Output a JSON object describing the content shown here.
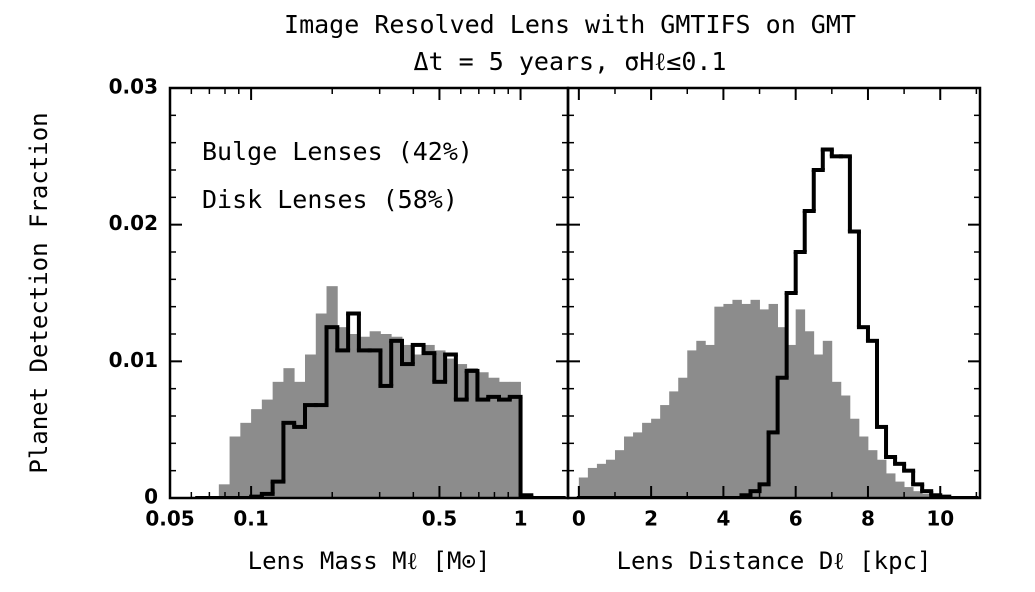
{
  "title": "Image Resolved Lens with GMTIFS on GMT",
  "subtitle": "Δt = 5 years, σHℓ≤0.1",
  "y_label": "Planet Detection Fraction",
  "chart_data": [
    {
      "type": "histogram",
      "x_label": "Lens Mass Mℓ [M⊙]",
      "xscale": "log",
      "xlim": [
        0.05,
        1.5
      ],
      "ylim": [
        0,
        0.03
      ],
      "xticks": [
        0.05,
        0.1,
        0.5,
        1
      ],
      "xminor": [
        0.06,
        0.07,
        0.08,
        0.09,
        0.2,
        0.3,
        0.4,
        0.6,
        0.7,
        0.8,
        0.9
      ],
      "yticks": [
        0,
        0.01,
        0.02,
        0.03
      ],
      "yminor": [
        0.002,
        0.004,
        0.006,
        0.008,
        0.012,
        0.014,
        0.016,
        0.018,
        0.022,
        0.024,
        0.026,
        0.028
      ],
      "bins": [
        0.0631,
        0.0692,
        0.0759,
        0.0832,
        0.0912,
        0.1,
        0.1096,
        0.1202,
        0.1318,
        0.1445,
        0.1585,
        0.1738,
        0.1905,
        0.2089,
        0.2291,
        0.2512,
        0.2754,
        0.302,
        0.3311,
        0.3631,
        0.3981,
        0.4365,
        0.4786,
        0.5248,
        0.5754,
        0.631,
        0.6918,
        0.7586,
        0.8318,
        0.912,
        1.0,
        1.0965,
        1.2023,
        1.3183,
        1.4454
      ],
      "series": [
        {
          "name": "Bulge Lenses (42%)",
          "color": "#000000",
          "style": "step",
          "values": [
            0,
            0,
            0,
            0,
            0,
            0.0001,
            0.0003,
            0.0012,
            0.0055,
            0.0052,
            0.0068,
            0.0068,
            0.0125,
            0.0108,
            0.0135,
            0.0108,
            0.0108,
            0.0082,
            0.0115,
            0.0098,
            0.0112,
            0.0106,
            0.0085,
            0.0105,
            0.0072,
            0.0093,
            0.0072,
            0.0074,
            0.0072,
            0.0074,
            0.0002,
            0,
            0,
            0
          ]
        },
        {
          "name": "Disk Lenses (58%)",
          "color": "#8c8c8c",
          "style": "filled",
          "values": [
            0,
            0,
            0.001,
            0.0045,
            0.0055,
            0.0065,
            0.0072,
            0.0085,
            0.0095,
            0.0085,
            0.0105,
            0.0135,
            0.0155,
            0.0125,
            0.012,
            0.0118,
            0.0122,
            0.012,
            0.0118,
            0.0112,
            0.0105,
            0.0112,
            0.0108,
            0.0102,
            0.0098,
            0.0095,
            0.0092,
            0.0088,
            0.0085,
            0.0085,
            0,
            0,
            0,
            0
          ]
        }
      ]
    },
    {
      "type": "histogram",
      "x_label": "Lens Distance Dℓ [kpc]",
      "xlim": [
        -0.3,
        11.1
      ],
      "ylim": [
        0,
        0.03
      ],
      "xticks": [
        0,
        2,
        4,
        6,
        8,
        10
      ],
      "xminor": [
        1,
        3,
        5,
        7,
        9,
        11
      ],
      "yticks": [
        0,
        0.01,
        0.02,
        0.03
      ],
      "yminor": [
        0.002,
        0.004,
        0.006,
        0.008,
        0.012,
        0.014,
        0.016,
        0.018,
        0.022,
        0.024,
        0.026,
        0.028
      ],
      "bins": [
        0,
        0.25,
        0.5,
        0.75,
        1,
        1.25,
        1.5,
        1.75,
        2,
        2.25,
        2.5,
        2.75,
        3,
        3.25,
        3.5,
        3.75,
        4,
        4.25,
        4.5,
        4.75,
        5,
        5.25,
        5.5,
        5.75,
        6,
        6.25,
        6.5,
        6.75,
        7,
        7.25,
        7.5,
        7.75,
        8,
        8.25,
        8.5,
        8.75,
        9,
        9.25,
        9.5,
        9.75,
        10,
        10.25,
        10.5,
        10.75,
        11
      ],
      "series": [
        {
          "color": "#000000",
          "style": "step",
          "values": [
            0,
            0,
            0,
            0,
            0,
            0,
            0,
            0,
            0,
            0,
            0,
            0,
            0,
            0,
            0,
            0,
            0,
            0,
            0.0002,
            0.0005,
            0.001,
            0.0048,
            0.0088,
            0.015,
            0.018,
            0.021,
            0.024,
            0.0255,
            0.025,
            0.025,
            0.0195,
            0.0125,
            0.0115,
            0.0052,
            0.003,
            0.0025,
            0.002,
            0.001,
            0.0005,
            0.0002,
            0.0001,
            0,
            0,
            0
          ]
        },
        {
          "color": "#8c8c8c",
          "style": "filled",
          "values": [
            0.0015,
            0.0022,
            0.0025,
            0.0028,
            0.0035,
            0.0045,
            0.0048,
            0.0055,
            0.0058,
            0.0068,
            0.0078,
            0.0088,
            0.0108,
            0.0115,
            0.0112,
            0.014,
            0.0142,
            0.0145,
            0.0142,
            0.0145,
            0.0138,
            0.0142,
            0.0125,
            0.0112,
            0.0138,
            0.0122,
            0.0105,
            0.0115,
            0.0085,
            0.0075,
            0.0058,
            0.0045,
            0.0035,
            0.0028,
            0.0018,
            0.0012,
            0.0008,
            0.0005,
            0.0003,
            0.0001,
            0,
            0,
            0,
            0
          ]
        }
      ]
    }
  ]
}
